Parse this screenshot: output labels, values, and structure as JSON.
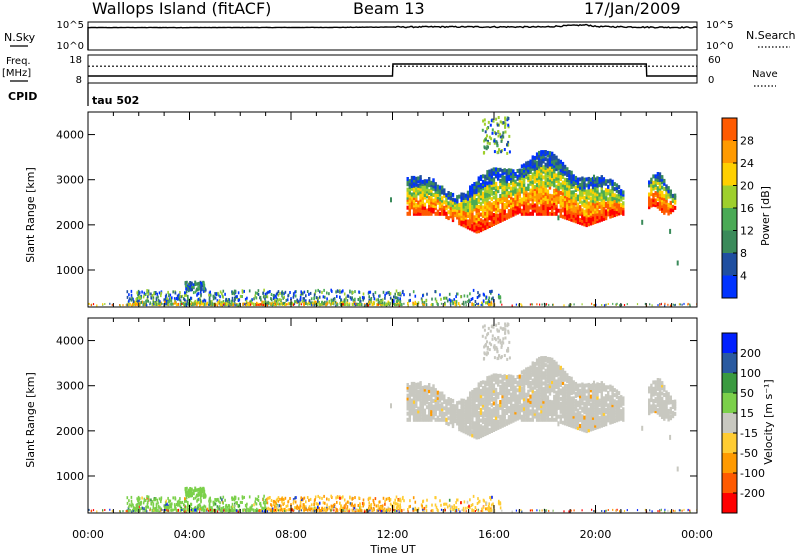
{
  "header": {
    "station": "Wallops Island (fitACF)",
    "beam": "Beam 13",
    "date": "17/Jan/2009"
  },
  "top_panels": {
    "nsky_label": "N.Sky",
    "nsearch_label": "N.Search",
    "nsky_ticks": [
      "10^5",
      "10^0"
    ],
    "nsearch_ticks": [
      "10^5",
      "10^0"
    ],
    "freq_label": "Freq.",
    "freq_unit": "[MHz]",
    "freq_ticks": [
      "18",
      "8"
    ],
    "nave_label": "Nave",
    "nave_ticks": [
      "60",
      "0"
    ],
    "cpid_label": "CPID",
    "cpid_value": "tau 502"
  },
  "colors": {
    "power": [
      "#0033ff",
      "#1f4fa0",
      "#3a8a5a",
      "#4aaa55",
      "#9ecf2d",
      "#ffd000",
      "#ff9a00",
      "#ff5a00",
      "#ff0000"
    ],
    "velocity": [
      "#ff0000",
      "#ff5a00",
      "#ff9a00",
      "#ffcc33",
      "#c8c8c0",
      "#7bd04a",
      "#3a9a40",
      "#2a5aa0",
      "#0020ff"
    ],
    "ground": "#c8c8c0"
  },
  "chart_data": [
    {
      "type": "line",
      "title": "N.Sky / N.Search",
      "x": [
        "00:00",
        "02:00",
        "04:00",
        "06:00",
        "08:00",
        "10:00",
        "12:00",
        "14:00",
        "16:00",
        "18:00",
        "19:40",
        "20:00",
        "22:00",
        "24:00"
      ],
      "series": [
        {
          "name": "N.Sky",
          "values": [
            10000,
            10200,
            10100,
            10300,
            10500,
            11000,
            12500,
            14000,
            13500,
            13000,
            30000,
            16000,
            12000,
            11000
          ]
        }
      ],
      "ylim": [
        1,
        100000
      ],
      "yscale": "log"
    },
    {
      "type": "line",
      "title": "Freq. / Nave",
      "x": [
        "00:00",
        "12:00",
        "12:01",
        "22:00",
        "22:01",
        "24:00"
      ],
      "series": [
        {
          "name": "Freq.",
          "values": [
            10.5,
            10.5,
            14.8,
            14.8,
            10.5,
            10.5
          ]
        },
        {
          "name": "Nave",
          "values": [
            36,
            36,
            36,
            36,
            36,
            36
          ]
        }
      ],
      "ylim": [
        8,
        18
      ]
    },
    {
      "type": "heatmap",
      "title": "Power",
      "xlabel": "",
      "ylabel": "Slant Range [km]",
      "x_ticks": [
        "00:00",
        "04:00",
        "08:00",
        "12:00",
        "16:00",
        "20:00",
        "00:00"
      ],
      "xlim": [
        0,
        24
      ],
      "ylim": [
        180,
        4500
      ],
      "y_ticks": [
        1000,
        2000,
        3000,
        4000
      ],
      "colorbar_label": "Power [dB]",
      "colorbar_ticks": [
        "4",
        "8",
        "12",
        "16",
        "20",
        "24",
        "28"
      ]
    },
    {
      "type": "heatmap",
      "title": "Velocity",
      "xlabel": "Time UT",
      "ylabel": "Slant Range [km]",
      "x_ticks": [
        "00:00",
        "04:00",
        "08:00",
        "12:00",
        "16:00",
        "20:00",
        "00:00"
      ],
      "xlim": [
        0,
        24
      ],
      "ylim": [
        180,
        4500
      ],
      "y_ticks": [
        1000,
        2000,
        3000,
        4000
      ],
      "colorbar_label": "Velocity [m s⁻¹]",
      "colorbar_ticks": [
        "-200",
        "-100",
        "-50",
        "-15",
        "15",
        "50",
        "100",
        "200"
      ]
    }
  ]
}
